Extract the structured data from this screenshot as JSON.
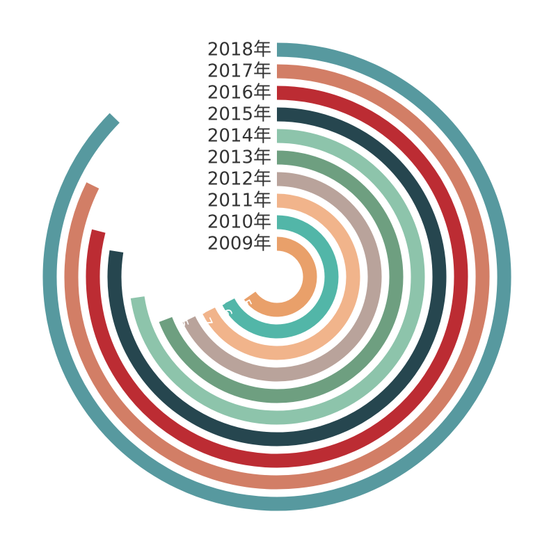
{
  "chart_data": {
    "type": "radial-bar",
    "title": "",
    "categories": [
      "2009年",
      "2010年",
      "2011年",
      "2012年",
      "2013年",
      "2014年",
      "2015年",
      "2016年",
      "2017年",
      "2018年"
    ],
    "values": [
      39.2,
      40.5,
      40.6,
      40.7,
      41.5,
      43.6,
      46.5,
      47.4,
      49.4,
      52.4
    ],
    "colors": [
      "#E9A06A",
      "#52B6A8",
      "#F1B48B",
      "#B9A39B",
      "#6E9F80",
      "#8DC4AB",
      "#26464F",
      "#BC2C33",
      "#D27E66",
      "#57999F"
    ],
    "axis_max": 60,
    "grid": false
  }
}
